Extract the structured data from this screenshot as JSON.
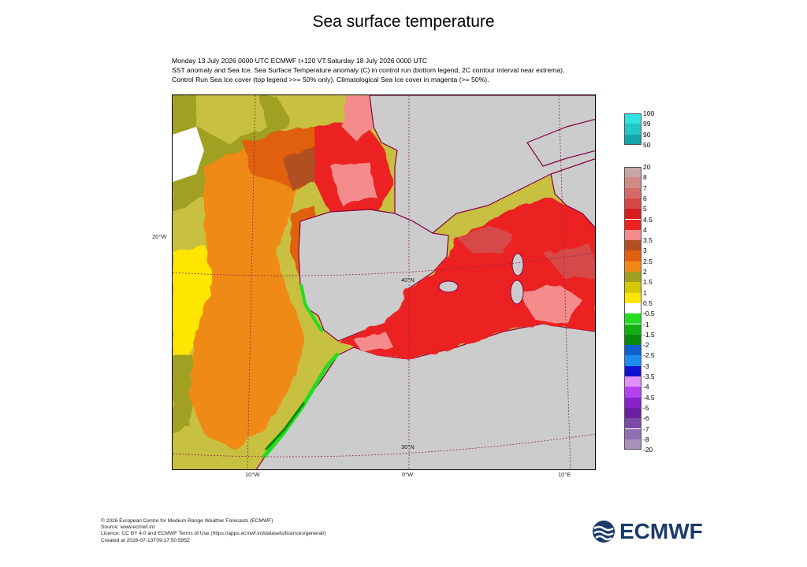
{
  "title": "Sea surface temperature",
  "subtitle_lines": [
    "Monday 13 July 2026 0000 UTC  ECMWF  t+120  VT:Saturday 18 July 2026 0000 UTC",
    "SST anomaly and Sea Ice. Sea Surface Temperature anomaly (C) in control run (bottom legend, 2C contour interval near extrema).",
    "Control Run Sea Ice cover (top legend >>= 50% only). Climatological Sea Ice cover in magenta (>= 50%)."
  ],
  "map": {
    "lat_labels": [
      "20°W",
      "40°N",
      "30°N"
    ],
    "lon_labels": [
      "10°W",
      "0°W",
      "10°E"
    ]
  },
  "ice_legend": {
    "labels": [
      "100",
      "99",
      "90",
      "50"
    ],
    "colors": [
      "#33e3e0",
      "#22c7c6",
      "#14a6a8"
    ]
  },
  "sst_legend": {
    "labels": [
      "20",
      "8",
      "7",
      "6",
      "5",
      "4.5",
      "4",
      "3.5",
      "3",
      "2.5",
      "2",
      "1.5",
      "1",
      "0.5",
      "-0.5",
      "-1",
      "-1.5",
      "-2",
      "-2.5",
      "-3",
      "-3.5",
      "-4",
      "-4.5",
      "-5",
      "-6",
      "-7",
      "-8",
      "-20"
    ],
    "colors": [
      "#c8a6a6",
      "#d28a86",
      "#d66a68",
      "#d64848",
      "#d81c1c",
      "#ec2222",
      "#f48c8c",
      "#b05020",
      "#e06010",
      "#f08a16",
      "#a0a020",
      "#d4c800",
      "#ffe600",
      "#ffffff",
      "#22dd22",
      "#10b010",
      "#0a8a0a",
      "#1060d0",
      "#1c8cf0",
      "#1010d0",
      "#e090f8",
      "#b440f0",
      "#8a20c8",
      "#6c20a0",
      "#7c4aa8",
      "#9070b0",
      "#a890b8"
    ]
  },
  "footer_lines": [
    "© 2026 European Centre for Medium-Range Weather Forecasts (ECMWF)",
    "Source: www.ecmwf.int",
    "Licence: CC BY 4.0 and ECMWF Terms of Use (https://apps.ecmwf.int/datasets/licences/general/)",
    "Created at 2026-07-13T09:17:50.595Z"
  ],
  "logo_text": "ECMWF"
}
